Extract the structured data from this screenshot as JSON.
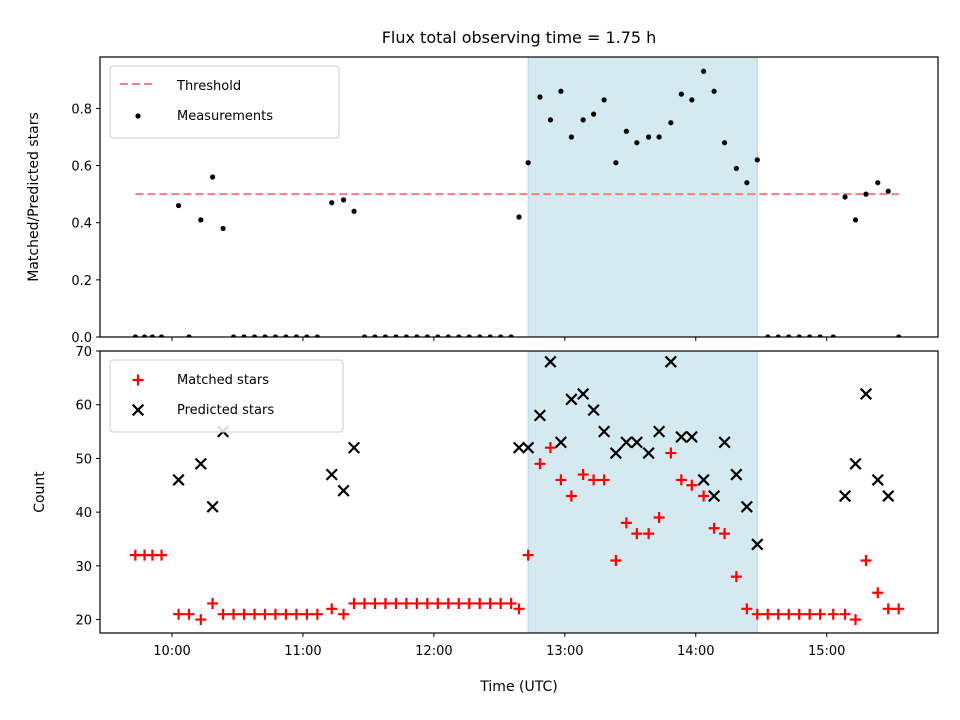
{
  "chart_data": {
    "type": "scatter",
    "title": "Flux total observing time = 1.75 h",
    "xlabel": "Time (UTC)",
    "x_tick_labels": [
      "10:00",
      "11:00",
      "12:00",
      "13:00",
      "14:00",
      "15:00"
    ],
    "x_ticks": [
      10,
      11,
      12,
      13,
      14,
      15
    ],
    "xlim": [
      9.45,
      15.85
    ],
    "shaded_region": {
      "x_start": 12.72,
      "x_end": 14.47,
      "color": "#d4eaf0"
    },
    "panels": [
      {
        "ylabel": "Matched/Predicted stars",
        "ylim": [
          0,
          0.98
        ],
        "y_ticks": [
          0,
          0.2,
          0.4,
          0.6,
          0.8
        ],
        "y_tick_labels": [
          "0.0",
          "0.2",
          "0.4",
          "0.6",
          "0.8"
        ],
        "legend": {
          "position": "top-left",
          "entries": [
            {
              "label": "Threshold",
              "style": "dashed-line",
              "color": "#f08080"
            },
            {
              "label": "Measurements",
              "style": "dot",
              "color": "#000000"
            }
          ]
        },
        "threshold": {
          "name": "Threshold",
          "value": 0.5,
          "x_start": 9.72,
          "x_end": 15.55,
          "color": "#f08080"
        },
        "series": [
          {
            "name": "Measurements",
            "marker": "dot",
            "color": "#000000",
            "points": [
              [
                9.72,
                0
              ],
              [
                9.79,
                0
              ],
              [
                9.85,
                0
              ],
              [
                9.92,
                0
              ],
              [
                10.05,
                0.46
              ],
              [
                10.13,
                0
              ],
              [
                10.22,
                0.41
              ],
              [
                10.31,
                0.56
              ],
              [
                10.39,
                0.38
              ],
              [
                10.47,
                0
              ],
              [
                10.55,
                0
              ],
              [
                10.63,
                0
              ],
              [
                10.71,
                0
              ],
              [
                10.79,
                0
              ],
              [
                10.87,
                0
              ],
              [
                10.95,
                0
              ],
              [
                11.03,
                0
              ],
              [
                11.11,
                0
              ],
              [
                11.22,
                0.47
              ],
              [
                11.31,
                0.48
              ],
              [
                11.39,
                0.44
              ],
              [
                11.47,
                0
              ],
              [
                11.55,
                0
              ],
              [
                11.63,
                0
              ],
              [
                11.71,
                0
              ],
              [
                11.79,
                0
              ],
              [
                11.87,
                0
              ],
              [
                11.95,
                0
              ],
              [
                12.03,
                0
              ],
              [
                12.11,
                0
              ],
              [
                12.19,
                0
              ],
              [
                12.27,
                0
              ],
              [
                12.35,
                0
              ],
              [
                12.43,
                0
              ],
              [
                12.51,
                0
              ],
              [
                12.59,
                0
              ],
              [
                12.65,
                0.42
              ],
              [
                12.72,
                0.61
              ],
              [
                12.81,
                0.84
              ],
              [
                12.89,
                0.76
              ],
              [
                12.97,
                0.86
              ],
              [
                13.05,
                0.7
              ],
              [
                13.14,
                0.76
              ],
              [
                13.22,
                0.78
              ],
              [
                13.3,
                0.83
              ],
              [
                13.39,
                0.61
              ],
              [
                13.47,
                0.72
              ],
              [
                13.55,
                0.68
              ],
              [
                13.64,
                0.7
              ],
              [
                13.72,
                0.7
              ],
              [
                13.81,
                0.75
              ],
              [
                13.89,
                0.85
              ],
              [
                13.97,
                0.83
              ],
              [
                14.06,
                0.93
              ],
              [
                14.14,
                0.86
              ],
              [
                14.22,
                0.68
              ],
              [
                14.31,
                0.59
              ],
              [
                14.39,
                0.54
              ],
              [
                14.47,
                0.62
              ],
              [
                14.55,
                0
              ],
              [
                14.63,
                0
              ],
              [
                14.71,
                0
              ],
              [
                14.79,
                0
              ],
              [
                14.87,
                0
              ],
              [
                14.95,
                0
              ],
              [
                15.05,
                0
              ],
              [
                15.14,
                0.49
              ],
              [
                15.22,
                0.41
              ],
              [
                15.3,
                0.5
              ],
              [
                15.39,
                0.54
              ],
              [
                15.47,
                0.51
              ],
              [
                15.55,
                0
              ]
            ]
          }
        ]
      },
      {
        "ylabel": "Count",
        "ylim": [
          17.5,
          70
        ],
        "y_ticks": [
          20,
          30,
          40,
          50,
          60,
          70
        ],
        "y_tick_labels": [
          "20",
          "30",
          "40",
          "50",
          "60",
          "70"
        ],
        "legend": {
          "position": "top-left",
          "entries": [
            {
              "label": "Matched stars",
              "style": "plus",
              "color": "#ff0000"
            },
            {
              "label": "Predicted stars",
              "style": "x",
              "color": "#000000"
            }
          ]
        },
        "series": [
          {
            "name": "Matched stars",
            "marker": "plus",
            "color": "#ff0000",
            "points": [
              [
                9.72,
                32
              ],
              [
                9.79,
                32
              ],
              [
                9.85,
                32
              ],
              [
                9.92,
                32
              ],
              [
                10.05,
                21
              ],
              [
                10.13,
                21
              ],
              [
                10.22,
                20
              ],
              [
                10.31,
                23
              ],
              [
                10.39,
                21
              ],
              [
                10.47,
                21
              ],
              [
                10.55,
                21
              ],
              [
                10.63,
                21
              ],
              [
                10.71,
                21
              ],
              [
                10.79,
                21
              ],
              [
                10.87,
                21
              ],
              [
                10.95,
                21
              ],
              [
                11.03,
                21
              ],
              [
                11.11,
                21
              ],
              [
                11.22,
                22
              ],
              [
                11.31,
                21
              ],
              [
                11.39,
                23
              ],
              [
                11.47,
                23
              ],
              [
                11.55,
                23
              ],
              [
                11.63,
                23
              ],
              [
                11.71,
                23
              ],
              [
                11.79,
                23
              ],
              [
                11.87,
                23
              ],
              [
                11.95,
                23
              ],
              [
                12.03,
                23
              ],
              [
                12.11,
                23
              ],
              [
                12.19,
                23
              ],
              [
                12.27,
                23
              ],
              [
                12.35,
                23
              ],
              [
                12.43,
                23
              ],
              [
                12.51,
                23
              ],
              [
                12.59,
                23
              ],
              [
                12.65,
                22
              ],
              [
                12.72,
                32
              ],
              [
                12.81,
                49
              ],
              [
                12.89,
                52
              ],
              [
                12.97,
                46
              ],
              [
                13.05,
                43
              ],
              [
                13.14,
                47
              ],
              [
                13.22,
                46
              ],
              [
                13.3,
                46
              ],
              [
                13.39,
                31
              ],
              [
                13.47,
                38
              ],
              [
                13.55,
                36
              ],
              [
                13.64,
                36
              ],
              [
                13.72,
                39
              ],
              [
                13.81,
                51
              ],
              [
                13.89,
                46
              ],
              [
                13.97,
                45
              ],
              [
                14.06,
                43
              ],
              [
                14.14,
                37
              ],
              [
                14.22,
                36
              ],
              [
                14.31,
                28
              ],
              [
                14.39,
                22
              ],
              [
                14.47,
                21
              ],
              [
                14.55,
                21
              ],
              [
                14.63,
                21
              ],
              [
                14.71,
                21
              ],
              [
                14.79,
                21
              ],
              [
                14.87,
                21
              ],
              [
                14.95,
                21
              ],
              [
                15.05,
                21
              ],
              [
                15.14,
                21
              ],
              [
                15.22,
                20
              ],
              [
                15.3,
                31
              ],
              [
                15.39,
                25
              ],
              [
                15.47,
                22
              ],
              [
                15.55,
                22
              ]
            ]
          },
          {
            "name": "Predicted stars",
            "marker": "x",
            "color": "#000000",
            "points": [
              [
                10.05,
                46
              ],
              [
                10.22,
                49
              ],
              [
                10.31,
                41
              ],
              [
                10.39,
                55
              ],
              [
                11.22,
                47
              ],
              [
                11.31,
                44
              ],
              [
                11.39,
                52
              ],
              [
                12.65,
                52
              ],
              [
                12.72,
                52
              ],
              [
                12.81,
                58
              ],
              [
                12.89,
                68
              ],
              [
                12.97,
                53
              ],
              [
                13.05,
                61
              ],
              [
                13.14,
                62
              ],
              [
                13.22,
                59
              ],
              [
                13.3,
                55
              ],
              [
                13.39,
                51
              ],
              [
                13.47,
                53
              ],
              [
                13.55,
                53
              ],
              [
                13.64,
                51
              ],
              [
                13.72,
                55
              ],
              [
                13.81,
                68
              ],
              [
                13.89,
                54
              ],
              [
                13.97,
                54
              ],
              [
                14.06,
                46
              ],
              [
                14.14,
                43
              ],
              [
                14.22,
                53
              ],
              [
                14.31,
                47
              ],
              [
                14.39,
                41
              ],
              [
                14.47,
                34
              ],
              [
                15.14,
                43
              ],
              [
                15.22,
                49
              ],
              [
                15.3,
                62
              ],
              [
                15.39,
                46
              ],
              [
                15.47,
                43
              ]
            ]
          }
        ]
      }
    ]
  }
}
